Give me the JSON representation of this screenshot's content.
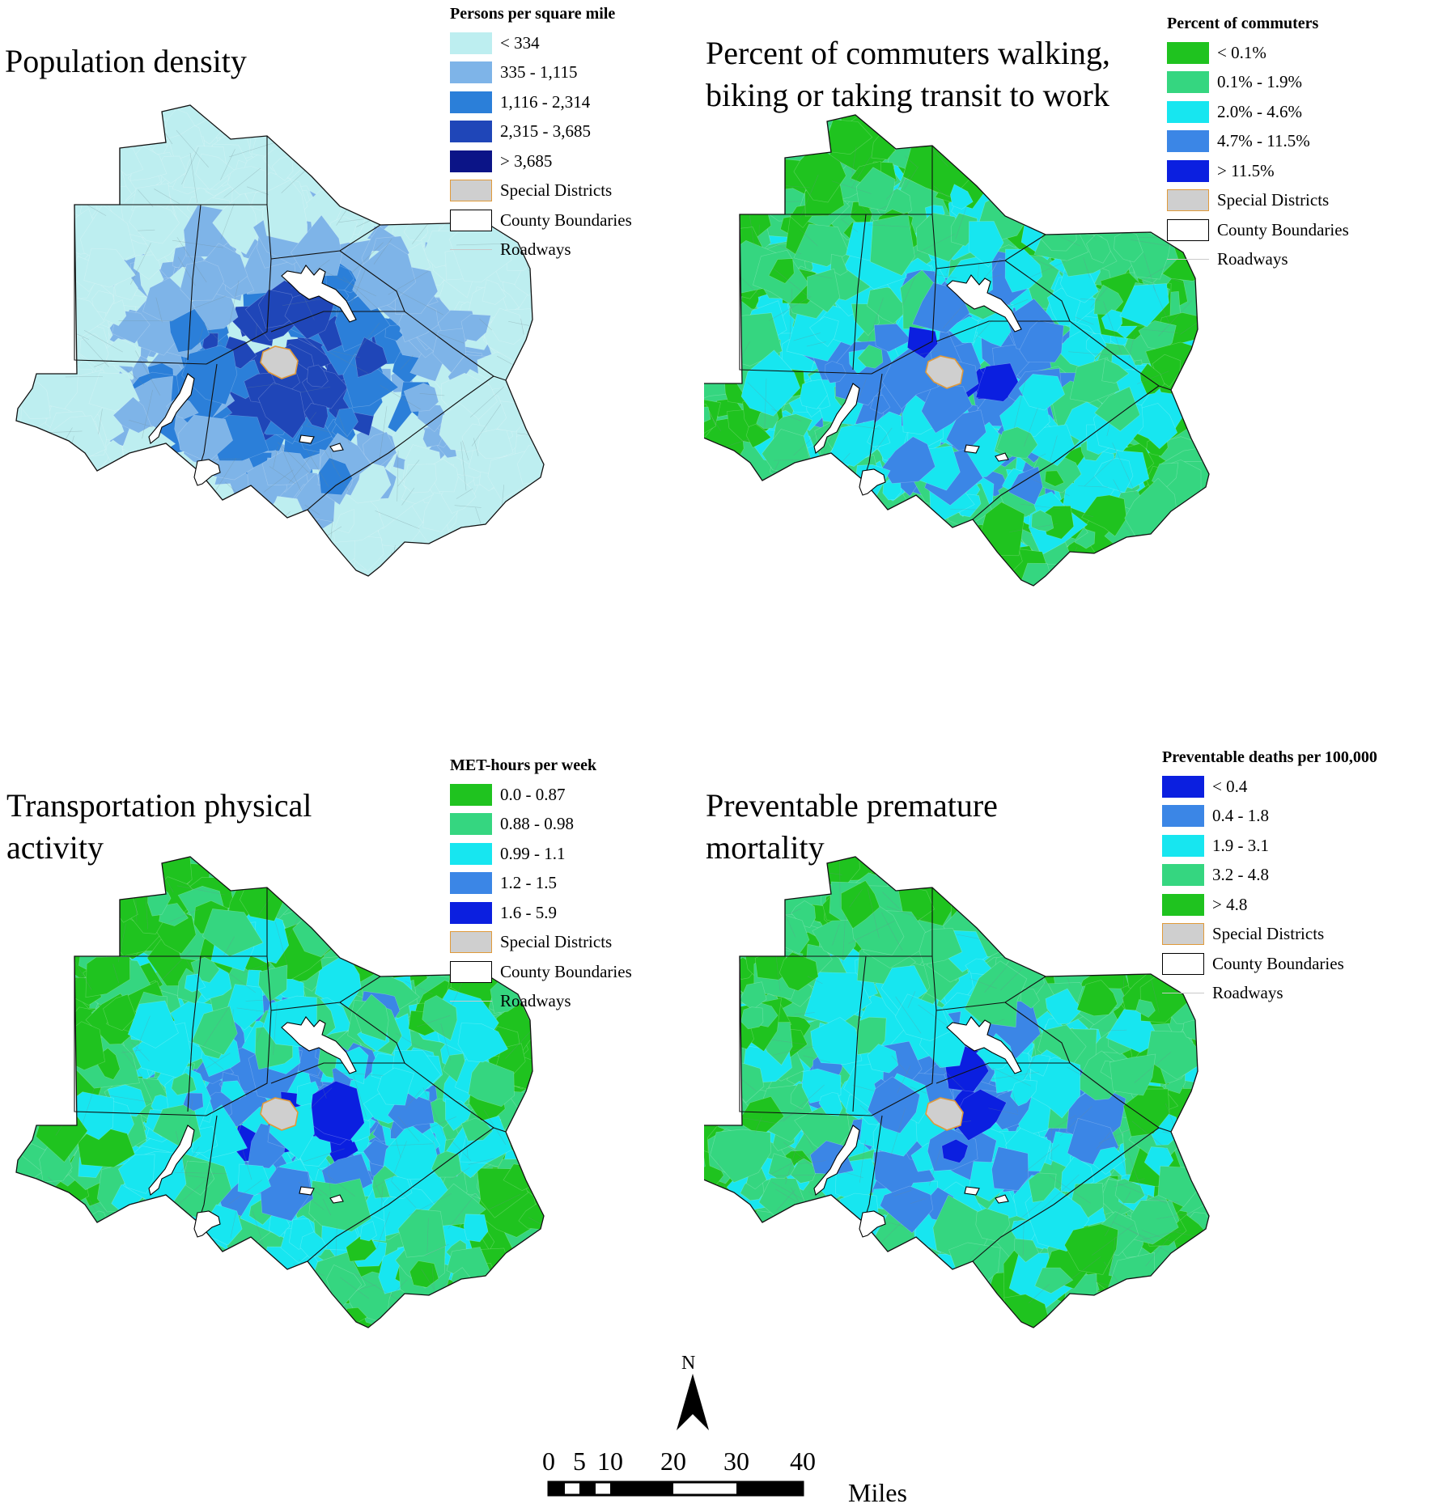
{
  "panels": [
    {
      "id": "population",
      "title": "Population density",
      "legend_title": "Persons per square mile",
      "classes": [
        {
          "label": "< 334",
          "color": "#bdeef0"
        },
        {
          "label": "335 - 1,115",
          "color": "#7eb4e8"
        },
        {
          "label": "1,116 - 2,314",
          "color": "#2b7fd9"
        },
        {
          "label": "2,315 - 3,685",
          "color": "#1f46b8"
        },
        {
          "label": "> 3,685",
          "color": "#0b1487"
        }
      ],
      "extras": [
        "Special Districts",
        "County Boundaries",
        "Roadways"
      ]
    },
    {
      "id": "commuters",
      "title": "Percent of commuters walking,\nbiking or taking transit to work",
      "legend_title": "Percent of commuters",
      "classes": [
        {
          "label": "< 0.1%",
          "color": "#1fc31f"
        },
        {
          "label": "0.1% - 1.9%",
          "color": "#35d680"
        },
        {
          "label": "2.0% - 4.6%",
          "color": "#17e6f0"
        },
        {
          "label": "4.7% - 11.5%",
          "color": "#3b86e6"
        },
        {
          "label": "> 11.5%",
          "color": "#0b1fe0"
        }
      ],
      "extras": [
        "Special Districts",
        "County Boundaries",
        "Roadways"
      ]
    },
    {
      "id": "met",
      "title": "Transportation physical\nactivity",
      "legend_title": "MET-hours per week",
      "classes": [
        {
          "label": "0.0 - 0.87",
          "color": "#1fc31f"
        },
        {
          "label": "0.88 - 0.98",
          "color": "#35d680"
        },
        {
          "label": "0.99 - 1.1",
          "color": "#17e6f0"
        },
        {
          "label": "1.2 - 1.5",
          "color": "#3b86e6"
        },
        {
          "label": "1.6 - 5.9",
          "color": "#0b1fe0"
        }
      ],
      "extras": [
        "Special Districts",
        "County Boundaries",
        "Roadways"
      ]
    },
    {
      "id": "mortality",
      "title": "Preventable premature\nmortality",
      "legend_title": "Preventable deaths per 100,000",
      "classes": [
        {
          "label": "< 0.4",
          "color": "#0b1fe0"
        },
        {
          "label": "0.4 - 1.8",
          "color": "#3b86e6"
        },
        {
          "label": "1.9 - 3.1",
          "color": "#17e6f0"
        },
        {
          "label": "3.2 - 4.8",
          "color": "#35d680"
        },
        {
          "label": "> 4.8",
          "color": "#1fc31f"
        }
      ],
      "extras": [
        "Special Districts",
        "County Boundaries",
        "Roadways"
      ]
    }
  ],
  "north_arrow": "N",
  "scale_bar": {
    "ticks": [
      "0",
      "5",
      "10",
      "20",
      "30",
      "40"
    ],
    "unit": "Miles"
  }
}
